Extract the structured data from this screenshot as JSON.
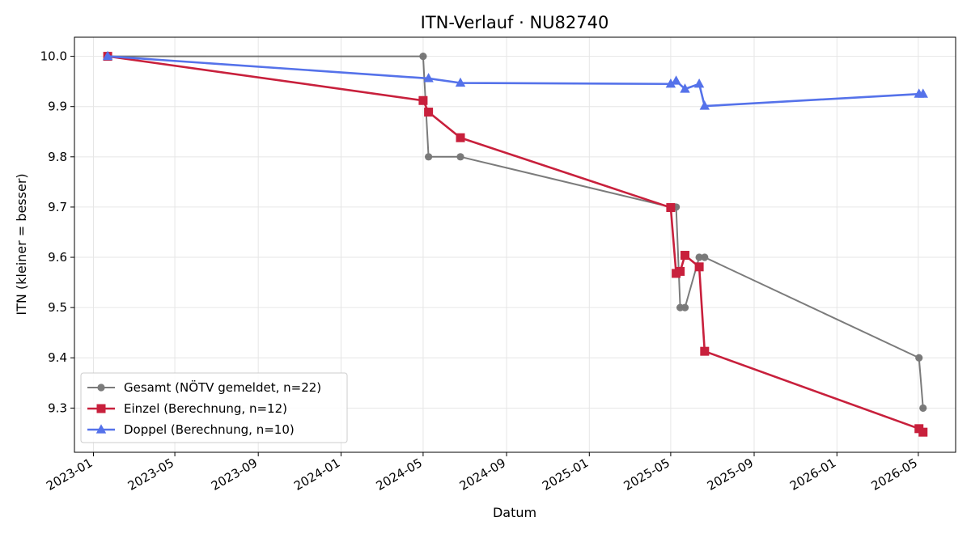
{
  "chart_data": {
    "type": "line",
    "title": "ITN-Verlauf · NU82740",
    "xlabel": "Datum",
    "ylabel": "ITN  (kleiner = besser)",
    "x_type": "date",
    "xlim": [
      "2022-12-04",
      "2026-06-25"
    ],
    "ylim": [
      9.212,
      10.038
    ],
    "x_ticks": [
      "2023-01-01",
      "2023-05-01",
      "2023-09-01",
      "2024-01-01",
      "2024-05-01",
      "2024-09-01",
      "2025-01-01",
      "2025-05-01",
      "2025-09-01",
      "2026-01-01",
      "2026-05-01"
    ],
    "x_tick_labels": [
      "2023-01",
      "2023-05",
      "2023-09",
      "2024-01",
      "2024-05",
      "2024-09",
      "2025-01",
      "2025-05",
      "2025-09",
      "2026-01",
      "2026-05"
    ],
    "y_ticks": [
      9.3,
      9.4,
      9.5,
      9.6,
      9.7,
      9.8,
      9.9,
      10.0
    ],
    "y_tick_labels": [
      "9.3",
      "9.4",
      "9.5",
      "9.6",
      "9.7",
      "9.8",
      "9.9",
      "10.0"
    ],
    "grid": true,
    "legend_position": "lower-left",
    "series": [
      {
        "name": "Gesamt (NÖTV gemeldet, n=22)",
        "color": "#444444",
        "marker": "circle",
        "points": [
          {
            "x": "2023-01-22",
            "y": 10.0
          },
          {
            "x": "2024-05-01",
            "y": 10.0
          },
          {
            "x": "2024-05-09",
            "y": 9.8
          },
          {
            "x": "2024-06-25",
            "y": 9.8
          },
          {
            "x": "2025-05-01",
            "y": 9.7
          },
          {
            "x": "2025-05-05",
            "y": 9.7
          },
          {
            "x": "2025-05-09",
            "y": 9.7
          },
          {
            "x": "2025-05-15",
            "y": 9.5
          },
          {
            "x": "2025-05-22",
            "y": 9.5
          },
          {
            "x": "2025-06-12",
            "y": 9.6
          },
          {
            "x": "2025-06-20",
            "y": 9.6
          },
          {
            "x": "2026-05-02",
            "y": 9.4
          },
          {
            "x": "2026-05-08",
            "y": 9.3
          }
        ]
      },
      {
        "name": "Einzel (Berechnung, n=12)",
        "color": "#c8203c",
        "marker": "square",
        "points": [
          {
            "x": "2023-01-22",
            "y": 10.0
          },
          {
            "x": "2024-05-01",
            "y": 9.912
          },
          {
            "x": "2024-05-09",
            "y": 9.889
          },
          {
            "x": "2024-06-25",
            "y": 9.838
          },
          {
            "x": "2025-05-01",
            "y": 9.699
          },
          {
            "x": "2025-05-09",
            "y": 9.568
          },
          {
            "x": "2025-05-15",
            "y": 9.572
          },
          {
            "x": "2025-05-22",
            "y": 9.604
          },
          {
            "x": "2025-06-12",
            "y": 9.581
          },
          {
            "x": "2025-06-20",
            "y": 9.413
          },
          {
            "x": "2026-05-02",
            "y": 9.259
          },
          {
            "x": "2026-05-08",
            "y": 9.252
          }
        ]
      },
      {
        "name": "Doppel (Berechnung, n=10)",
        "color": "#5572ea",
        "marker": "triangle",
        "points": [
          {
            "x": "2023-01-22",
            "y": 10.0
          },
          {
            "x": "2024-05-09",
            "y": 9.956
          },
          {
            "x": "2024-06-25",
            "y": 9.947
          },
          {
            "x": "2025-05-01",
            "y": 9.945
          },
          {
            "x": "2025-05-09",
            "y": 9.951
          },
          {
            "x": "2025-05-22",
            "y": 9.935
          },
          {
            "x": "2025-06-12",
            "y": 9.945
          },
          {
            "x": "2025-06-20",
            "y": 9.901
          },
          {
            "x": "2026-05-02",
            "y": 9.925
          },
          {
            "x": "2026-05-08",
            "y": 9.925
          }
        ]
      }
    ]
  }
}
